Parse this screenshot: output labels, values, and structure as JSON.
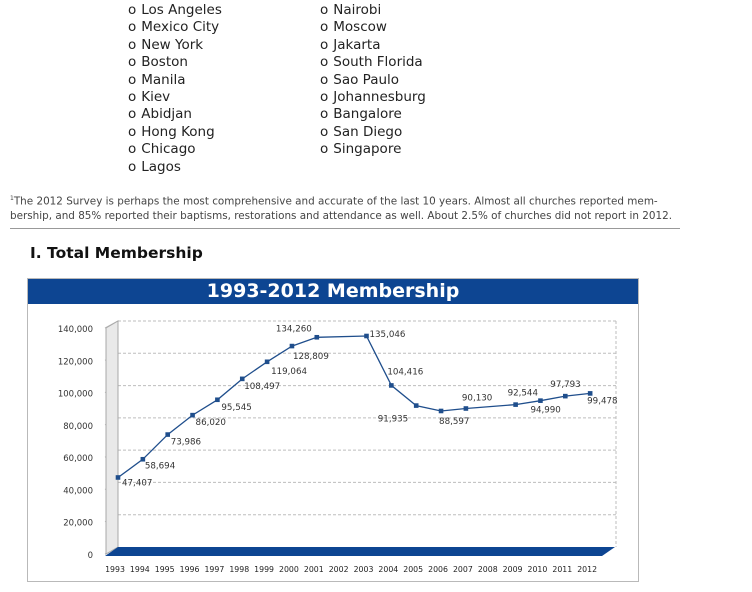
{
  "lists": {
    "left": [
      {
        "bullet": "o",
        "label": "Los Angeles"
      },
      {
        "bullet": "o",
        "label": "Mexico City"
      },
      {
        "bullet": "o",
        "label": "New York"
      },
      {
        "bullet": "o",
        "label": "Boston"
      },
      {
        "bullet": "o",
        "label": "Manila"
      },
      {
        "bullet": "o",
        "label": "Kiev"
      },
      {
        "bullet": "o",
        "label": "Abidjan"
      },
      {
        "bullet": "o",
        "label": "Hong Kong"
      },
      {
        "bullet": "o",
        "label": "Chicago"
      },
      {
        "bullet": "o",
        "label": "Lagos"
      }
    ],
    "right": [
      {
        "bullet": "o",
        "label": "Nairobi"
      },
      {
        "bullet": "o",
        "label": "Moscow"
      },
      {
        "bullet": "o",
        "label": "Jakarta"
      },
      {
        "bullet": "o",
        "label": "South Florida"
      },
      {
        "bullet": "o",
        "label": "Sao Paulo"
      },
      {
        "bullet": "o",
        "label": "Johannesburg"
      },
      {
        "bullet": "o",
        "label": "Bangalore"
      },
      {
        "bullet": "o",
        "label": "San Diego"
      },
      {
        "bullet": "o",
        "label": "Singapore"
      }
    ]
  },
  "footnote": {
    "marker": "1",
    "line1": "The 2012 Survey is perhaps the most comprehensive and accurate of the last 10 years. Almost all churches reported mem-",
    "line2": "bership, and 85% reported their baptisms, restorations and attendance as well. About 2.5% of churches did not report in 2012."
  },
  "section": {
    "heading": "I. Total Membership"
  },
  "colors": {
    "title_bar": "#0d4592",
    "line": "#1f4e8c",
    "floor": "#0d4592",
    "grid": "#bdbdbd"
  },
  "chart_data": {
    "type": "line",
    "title": "1993-2012 Membership",
    "xlabel": "",
    "ylabel": "",
    "categories": [
      "1993",
      "1994",
      "1995",
      "1996",
      "1997",
      "1998",
      "1999",
      "2000",
      "2001",
      "2002",
      "2003",
      "2004",
      "2005",
      "2006",
      "2007",
      "2008",
      "2009",
      "2010",
      "2011",
      "2012"
    ],
    "values": [
      47407,
      58694,
      73986,
      86020,
      95545,
      108497,
      119064,
      128809,
      134260,
      null,
      135046,
      104416,
      91935,
      88597,
      90130,
      null,
      92544,
      94990,
      97793,
      99478
    ],
    "data_labels": [
      "47,407",
      "58,694",
      "73,986",
      "86,020",
      "95,545",
      "108,497",
      "119,064",
      "128,809",
      "134,260",
      "",
      "135,046",
      "104,416",
      "91,935",
      "88,597",
      "90,130",
      "",
      "92,544",
      "94,990",
      "97,793",
      "99,478"
    ],
    "ylim": [
      0,
      140000
    ],
    "yticks": [
      0,
      20000,
      40000,
      60000,
      80000,
      100000,
      120000,
      140000
    ],
    "ytick_labels": [
      "0",
      "20,000",
      "40,000",
      "60,000",
      "80,000",
      "100,000",
      "120,000",
      "140,000"
    ],
    "grid": true,
    "legend": "none"
  }
}
